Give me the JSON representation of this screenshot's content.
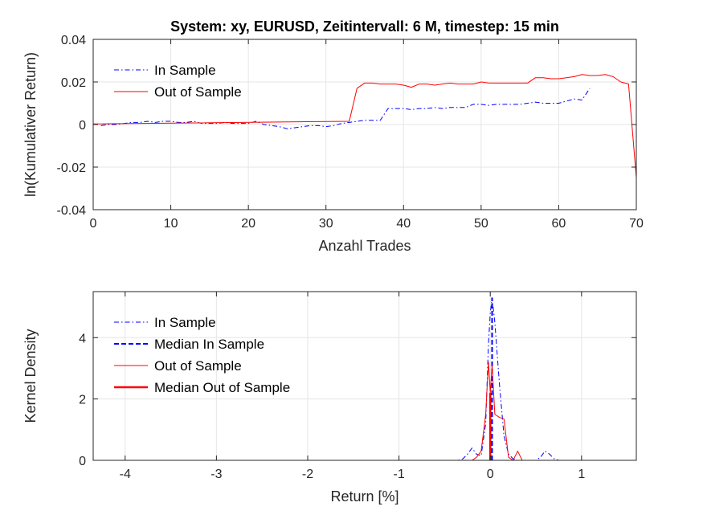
{
  "colors": {
    "in_sample": "#0000ff",
    "out_sample": "#ff0000",
    "axis": "#262626",
    "grid": "#e6e6e6"
  },
  "chart_data": [
    {
      "type": "line",
      "title": "System: xy, EURUSD, Zeitintervall: 6 M, timestep: 15 min",
      "xlabel": "Anzahl Trades",
      "ylabel": "ln(Kumulativer Return)",
      "xlim": [
        0,
        70
      ],
      "ylim": [
        -0.04,
        0.04
      ],
      "xticks": [
        0,
        10,
        20,
        30,
        40,
        50,
        60,
        70
      ],
      "xtick_labels": [
        "0",
        "10",
        "20",
        "30",
        "40",
        "50",
        "60",
        "70"
      ],
      "yticks": [
        -0.04,
        -0.02,
        0,
        0.02,
        0.04
      ],
      "ytick_labels": [
        "-0.04",
        "-0.02",
        "0",
        "0.02",
        "0.04"
      ],
      "grid": true,
      "legend_position": "top-left",
      "series": [
        {
          "name": "In Sample",
          "style": "dashdot",
          "x": [
            1,
            2,
            3,
            4,
            5,
            6,
            7,
            8,
            9,
            10,
            11,
            12,
            13,
            14,
            15,
            16,
            17,
            18,
            19,
            20,
            21,
            22,
            23,
            24,
            25,
            26,
            27,
            28,
            29,
            30,
            31,
            32,
            33,
            34,
            35,
            36,
            37,
            38,
            39,
            40,
            41,
            42,
            43,
            44,
            45,
            46,
            47,
            48,
            49,
            50,
            51,
            52,
            53,
            54,
            55,
            56,
            57,
            58,
            59,
            60,
            61,
            62,
            63,
            64
          ],
          "y": [
            -0.0005,
            0,
            0,
            0.0005,
            0.001,
            0.001,
            0.0015,
            0.001,
            0.0015,
            0.0015,
            0.001,
            0.001,
            0.0015,
            0.0005,
            0.0005,
            0.0005,
            0.001,
            0.0005,
            0.0005,
            0.0005,
            0.0015,
            0,
            -0.0005,
            -0.001,
            -0.002,
            -0.0015,
            -0.001,
            -0.0005,
            -0.0005,
            -0.001,
            -0.0005,
            0.0005,
            0.001,
            0.0015,
            0.002,
            0.002,
            0.002,
            0.0075,
            0.0075,
            0.0075,
            0.007,
            0.0075,
            0.0075,
            0.008,
            0.0075,
            0.008,
            0.008,
            0.008,
            0.0095,
            0.0095,
            0.009,
            0.0095,
            0.0095,
            0.0095,
            0.0095,
            0.01,
            0.0105,
            0.01,
            0.01,
            0.01,
            0.011,
            0.012,
            0.0115,
            0.017
          ]
        },
        {
          "name": "Out of Sample",
          "style": "solid",
          "x": [
            0,
            33,
            34,
            35,
            36,
            37,
            38,
            39,
            40,
            41,
            42,
            43,
            44,
            45,
            46,
            47,
            48,
            49,
            50,
            51,
            52,
            53,
            54,
            55,
            56,
            57,
            58,
            59,
            60,
            61,
            62,
            63,
            64,
            65,
            66,
            67,
            68,
            69,
            70
          ],
          "y": [
            0.0003,
            0.0015,
            0.017,
            0.0195,
            0.0195,
            0.019,
            0.019,
            0.019,
            0.0185,
            0.0175,
            0.019,
            0.019,
            0.0185,
            0.019,
            0.0195,
            0.019,
            0.019,
            0.019,
            0.02,
            0.0195,
            0.0195,
            0.0195,
            0.0195,
            0.0195,
            0.0195,
            0.022,
            0.022,
            0.0215,
            0.0215,
            0.022,
            0.0225,
            0.0235,
            0.023,
            0.023,
            0.0235,
            0.0225,
            0.02,
            0.019,
            -0.025
          ]
        }
      ]
    },
    {
      "type": "line",
      "xlabel": "Return [%]",
      "ylabel": "Kernel Density",
      "xlim": [
        -4.35,
        1.6
      ],
      "ylim": [
        0,
        5.5
      ],
      "xticks": [
        -4,
        -3,
        -2,
        -1,
        0,
        1
      ],
      "xtick_labels": [
        "-4",
        "-3",
        "-2",
        "-1",
        "0",
        "1"
      ],
      "yticks": [
        0,
        2,
        4
      ],
      "ytick_labels": [
        "0",
        "2",
        "4"
      ],
      "grid": true,
      "legend_position": "top-left",
      "series": [
        {
          "name": "In Sample",
          "style": "dashdot",
          "x": [
            -4.35,
            -0.35,
            -0.3,
            -0.25,
            -0.2,
            -0.15,
            -0.1,
            -0.05,
            -0.02,
            0,
            0.02,
            0.05,
            0.1,
            0.15,
            0.2,
            0.25,
            0.3,
            0.4,
            0.5,
            0.55,
            0.6,
            0.65,
            0.7,
            0.75,
            0.8,
            1.6
          ],
          "y": [
            0,
            0,
            0.05,
            0.2,
            0.4,
            0.2,
            0.15,
            1.2,
            3.8,
            4.8,
            5.3,
            4.5,
            2.5,
            0.8,
            0.2,
            0.05,
            0,
            0,
            0,
            0.1,
            0.3,
            0.2,
            0.05,
            0,
            0,
            0
          ]
        },
        {
          "name": "Median In Sample",
          "style": "dashed-vertical",
          "x": [
            0.02,
            0.02
          ],
          "y": [
            0,
            5.3
          ]
        },
        {
          "name": "Out of Sample",
          "style": "solid",
          "x": [
            -4.35,
            -0.2,
            -0.15,
            -0.1,
            -0.05,
            -0.02,
            0,
            0.02,
            0.05,
            0.1,
            0.15,
            0.2,
            0.25,
            0.3,
            0.35,
            1.6
          ],
          "y": [
            0,
            0,
            0.1,
            0.3,
            1.5,
            3.2,
            2.2,
            3.1,
            1.5,
            1.4,
            1.35,
            0.1,
            0,
            0.3,
            0,
            0
          ]
        },
        {
          "name": "Median Out of Sample",
          "style": "thick-vertical",
          "x": [
            0,
            0
          ],
          "y": [
            0,
            2.2
          ]
        }
      ]
    }
  ]
}
